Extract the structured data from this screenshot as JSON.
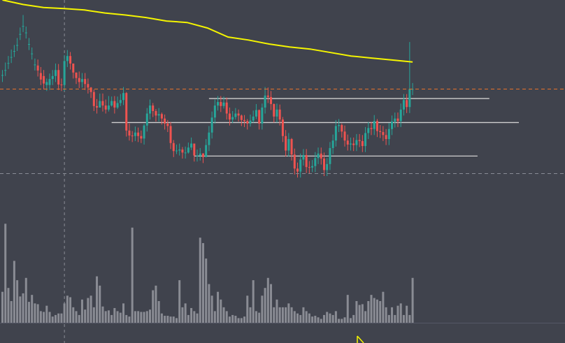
{
  "theme": {
    "background": "#40434d",
    "up_color": "#26a69a",
    "down_color": "#ef5350",
    "volume_color": "#8a8c94",
    "ma_color": "#f5f500",
    "level_line_color": "#d0d0d0",
    "price_line_color": "#e8722a",
    "crosshair_color": "#8a8d96"
  },
  "chart_data": {
    "type": "candlestick",
    "title": "",
    "xlabel": "",
    "ylabel": "",
    "ylim": [
      85,
      135
    ],
    "candle_count": 140,
    "last_close": 117.2,
    "price_line": 117.2,
    "moving_average": {
      "start_index": 0,
      "values": [
        135,
        134.1,
        133.5,
        133.3,
        133,
        132.4,
        132,
        131.5,
        130.8,
        130.5,
        129.4,
        127.6,
        127,
        126.2,
        125.6,
        125.2,
        124.5,
        123.8,
        123.4,
        123,
        122.6
      ]
    },
    "levels": [
      {
        "value": 115.3,
        "from_index": 70,
        "to_index": 165
      },
      {
        "value": 110.5,
        "from_index": 37,
        "to_index": 175
      },
      {
        "value": 103.8,
        "from_index": 65,
        "to_index": 161
      }
    ],
    "crosshair": {
      "index": 21,
      "value": 100.3
    },
    "volume": {
      "ylim": [
        0,
        140
      ],
      "values": [
        40,
        128,
        45,
        28,
        80,
        55,
        34,
        38,
        58,
        27,
        36,
        25,
        24,
        15,
        14,
        22,
        14,
        8,
        10,
        12,
        12,
        25,
        35,
        33,
        20,
        15,
        10,
        30,
        17,
        32,
        35,
        20,
        60,
        48,
        21,
        15,
        16,
        10,
        19,
        15,
        13,
        25,
        10,
        8,
        123,
        15,
        15,
        14,
        14,
        15,
        17,
        42,
        48,
        28,
        12,
        9,
        9,
        8,
        8,
        6,
        55,
        20,
        25,
        10,
        19,
        15,
        12,
        110,
        103,
        83,
        50,
        35,
        15,
        40,
        30,
        20,
        15,
        8,
        10,
        9,
        6,
        6,
        8,
        35,
        20,
        55,
        15,
        13,
        35,
        45,
        58,
        50,
        20,
        30,
        20,
        20,
        20,
        25,
        20,
        15,
        12,
        10,
        20,
        15,
        12,
        8,
        9,
        7,
        5,
        10,
        14,
        12,
        10,
        15,
        5,
        5,
        7,
        36,
        6,
        10,
        28,
        23,
        24,
        15,
        28,
        36,
        32,
        30,
        28,
        40,
        20,
        10,
        20,
        10,
        22,
        25,
        10,
        22,
        10,
        58
      ]
    },
    "candles": [
      [
        120.0,
        120.0,
        121.0,
        118.6
      ],
      [
        121.0,
        121.0,
        122.5,
        119.8
      ],
      [
        122.4,
        122.4,
        123.8,
        121.2
      ],
      [
        123.6,
        123.6,
        125.1,
        122.4
      ],
      [
        124.8,
        124.8,
        126.0,
        123.6
      ],
      [
        126.0,
        126.0,
        127.4,
        124.8
      ],
      [
        128.2,
        128.2,
        129.5,
        127.0
      ],
      [
        129.8,
        129.8,
        132.0,
        128.6
      ],
      [
        128.5,
        128.5,
        129.7,
        127.3
      ],
      [
        126.2,
        126.2,
        127.4,
        125.0
      ],
      [
        124.3,
        124.3,
        125.5,
        123.1
      ],
      [
        122.1,
        122.1,
        123.3,
        120.9
      ],
      [
        121.9,
        120.9,
        123.1,
        119.7
      ],
      [
        120.4,
        119.1,
        121.6,
        118.0
      ],
      [
        119.8,
        118.3,
        121.0,
        117.1
      ],
      [
        118.0,
        118.6,
        119.3,
        116.8
      ],
      [
        118.0,
        119.2,
        120.3,
        117.0
      ],
      [
        119.2,
        119.8,
        121.0,
        118.0
      ],
      [
        119.8,
        121.0,
        122.3,
        118.6
      ],
      [
        121.0,
        118.1,
        122.2,
        117.0
      ],
      [
        118.1,
        118.0,
        119.3,
        116.8
      ],
      [
        118.0,
        122.8,
        124.0,
        116.8
      ],
      [
        122.8,
        123.8,
        125.0,
        121.6
      ],
      [
        123.8,
        122.3,
        124.6,
        121.1
      ],
      [
        122.3,
        120.5,
        122.3,
        119.3
      ],
      [
        120.5,
        119.4,
        120.5,
        118.2
      ],
      [
        119.4,
        118.6,
        120.7,
        117.4
      ],
      [
        118.6,
        119.2,
        120.4,
        117.5
      ],
      [
        119.2,
        118.2,
        120.4,
        117.0
      ],
      [
        118.2,
        117.5,
        119.3,
        116.3
      ],
      [
        117.5,
        116.6,
        117.6,
        115.4
      ],
      [
        116.6,
        113.8,
        117.1,
        112.8
      ],
      [
        113.8,
        113.5,
        115.2,
        112.3
      ],
      [
        113.5,
        114.8,
        116.3,
        113.6
      ],
      [
        114.8,
        113.9,
        116.3,
        112.7
      ],
      [
        113.9,
        113.1,
        115.1,
        112.3
      ],
      [
        113.1,
        113.9,
        115.8,
        112.7
      ],
      [
        113.9,
        114.8,
        115.7,
        113.7
      ],
      [
        114.8,
        113.5,
        115.8,
        112.3
      ],
      [
        113.5,
        114.4,
        115.7,
        113.2
      ],
      [
        114.4,
        115.0,
        116.2,
        113.8
      ],
      [
        115.0,
        116.4,
        117.6,
        114.0
      ],
      [
        116.4,
        108.9,
        116.6,
        107.7
      ],
      [
        108.9,
        107.9,
        110.3,
        106.9
      ],
      [
        107.9,
        107.8,
        108.8,
        106.6
      ],
      [
        107.8,
        108.5,
        109.7,
        106.8
      ],
      [
        108.5,
        107.8,
        109.5,
        106.6
      ],
      [
        107.8,
        107.3,
        108.9,
        106.4
      ],
      [
        107.3,
        109.9,
        110.2,
        106.1
      ],
      [
        109.9,
        112.3,
        113.4,
        108.7
      ],
      [
        112.3,
        113.9,
        115.1,
        111.1
      ],
      [
        113.9,
        112.8,
        114.4,
        111.6
      ],
      [
        112.8,
        111.9,
        113.2,
        110.7
      ],
      [
        111.9,
        112.2,
        113.4,
        110.7
      ],
      [
        112.2,
        111.3,
        112.5,
        110.1
      ],
      [
        111.3,
        110.3,
        112.1,
        109.1
      ],
      [
        110.3,
        109.8,
        111.0,
        108.6
      ],
      [
        109.8,
        106.4,
        110.6,
        105.2
      ],
      [
        106.4,
        104.8,
        107.0,
        103.6
      ],
      [
        104.8,
        104.9,
        106.1,
        104.2
      ],
      [
        104.9,
        105.1,
        106.3,
        103.9
      ],
      [
        105.1,
        104.5,
        105.6,
        103.3
      ],
      [
        104.5,
        104.5,
        105.7,
        103.3
      ],
      [
        104.5,
        105.5,
        106.5,
        104.3
      ],
      [
        105.5,
        106.3,
        107.5,
        105.0
      ],
      [
        106.3,
        103.9,
        106.3,
        102.7
      ],
      [
        103.9,
        103.9,
        105.1,
        102.7
      ],
      [
        103.9,
        104.3,
        105.4,
        102.9
      ],
      [
        104.3,
        103.6,
        104.4,
        102.4
      ],
      [
        103.6,
        106.0,
        107.2,
        103.6
      ],
      [
        106.0,
        108.5,
        109.8,
        104.8
      ],
      [
        108.5,
        111.5,
        112.7,
        107.3
      ],
      [
        111.5,
        113.9,
        115.1,
        110.3
      ],
      [
        113.9,
        114.6,
        115.8,
        112.9
      ],
      [
        114.6,
        113.8,
        115.8,
        112.6
      ],
      [
        113.8,
        114.5,
        115.7,
        113.3
      ],
      [
        114.5,
        112.3,
        115.5,
        111.1
      ],
      [
        112.3,
        111.1,
        113.5,
        109.9
      ],
      [
        111.1,
        111.6,
        112.8,
        110.4
      ],
      [
        111.6,
        112.3,
        113.4,
        111.1
      ],
      [
        112.3,
        111.9,
        113.1,
        110.7
      ],
      [
        111.9,
        111.0,
        112.1,
        109.8
      ],
      [
        111.0,
        110.8,
        112.0,
        109.6
      ],
      [
        110.8,
        110.3,
        111.2,
        109.1
      ],
      [
        110.3,
        110.9,
        112.1,
        109.7
      ],
      [
        110.9,
        111.7,
        112.9,
        110.5
      ],
      [
        111.7,
        113.0,
        114.2,
        111.2
      ],
      [
        113.0,
        110.3,
        113.1,
        109.1
      ],
      [
        110.3,
        113.5,
        114.3,
        109.1
      ],
      [
        113.5,
        115.9,
        117.6,
        112.3
      ],
      [
        115.9,
        115.6,
        117.5,
        114.4
      ],
      [
        115.6,
        114.2,
        116.8,
        113.0
      ],
      [
        114.2,
        111.7,
        114.3,
        110.5
      ],
      [
        111.7,
        113.1,
        114.3,
        110.5
      ],
      [
        113.1,
        111.1,
        114.1,
        109.9
      ],
      [
        111.1,
        107.8,
        111.6,
        106.6
      ],
      [
        107.8,
        104.9,
        109.0,
        103.7
      ],
      [
        104.9,
        107.2,
        108.4,
        103.7
      ],
      [
        107.2,
        104.1,
        107.4,
        102.9
      ],
      [
        104.1,
        101.3,
        105.3,
        100.1
      ],
      [
        101.3,
        100.7,
        102.5,
        99.5
      ],
      [
        100.7,
        103.1,
        104.3,
        99.5
      ],
      [
        103.1,
        104.0,
        105.2,
        101.9
      ],
      [
        104.0,
        101.6,
        105.2,
        100.4
      ],
      [
        101.6,
        101.5,
        102.8,
        100.3
      ],
      [
        101.5,
        101.8,
        103.0,
        100.6
      ],
      [
        101.8,
        103.4,
        104.6,
        100.6
      ],
      [
        103.4,
        104.3,
        105.5,
        102.2
      ],
      [
        104.3,
        103.3,
        105.5,
        102.1
      ],
      [
        103.3,
        101.0,
        104.5,
        99.8
      ],
      [
        101.0,
        102.2,
        103.4,
        99.8
      ],
      [
        102.2,
        105.4,
        106.6,
        101.0
      ],
      [
        105.4,
        106.9,
        108.1,
        104.2
      ],
      [
        106.9,
        109.8,
        111.0,
        105.7
      ],
      [
        109.8,
        110.0,
        111.2,
        108.6
      ],
      [
        110.0,
        108.7,
        110.3,
        107.5
      ],
      [
        108.7,
        106.9,
        109.9,
        105.7
      ],
      [
        106.9,
        106.1,
        108.1,
        104.9
      ],
      [
        106.1,
        106.3,
        107.5,
        104.9
      ],
      [
        106.3,
        106.0,
        107.5,
        104.8
      ],
      [
        106.0,
        107.0,
        108.2,
        104.8
      ],
      [
        107.0,
        106.8,
        108.2,
        105.6
      ],
      [
        106.8,
        105.8,
        108.0,
        104.6
      ],
      [
        105.8,
        108.4,
        109.6,
        104.6
      ],
      [
        108.4,
        109.4,
        110.6,
        107.2
      ],
      [
        109.4,
        109.2,
        110.6,
        108.0
      ],
      [
        109.2,
        110.8,
        112.0,
        108.0
      ],
      [
        110.8,
        108.8,
        111.2,
        107.6
      ],
      [
        108.8,
        108.6,
        110.0,
        107.4
      ],
      [
        108.6,
        108.0,
        109.8,
        106.8
      ],
      [
        108.0,
        107.2,
        109.2,
        106.0
      ],
      [
        107.2,
        109.2,
        110.4,
        106.0
      ],
      [
        109.2,
        110.7,
        111.9,
        108.0
      ],
      [
        110.7,
        111.3,
        112.5,
        109.5
      ],
      [
        111.3,
        110.8,
        112.5,
        109.6
      ],
      [
        110.8,
        113.1,
        114.3,
        109.6
      ],
      [
        113.1,
        115.0,
        116.2,
        111.9
      ],
      [
        115.0,
        113.6,
        116.2,
        112.4
      ],
      [
        113.6,
        117.2,
        126.6,
        112.4
      ],
      [
        117.2,
        117.2,
        118.4,
        116.0
      ]
    ]
  }
}
